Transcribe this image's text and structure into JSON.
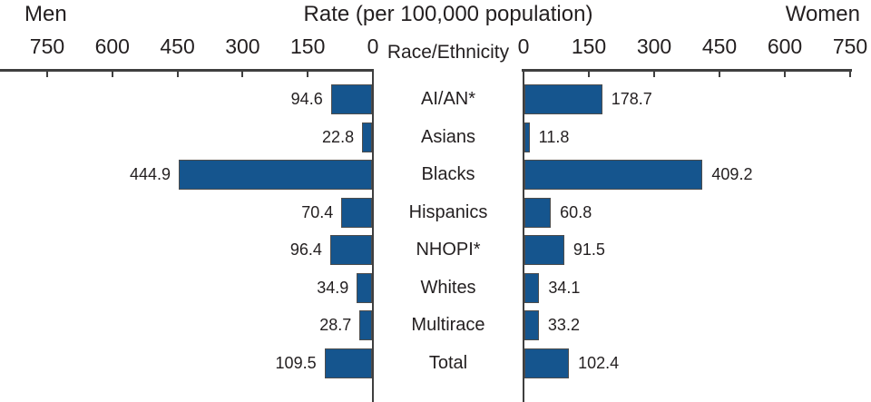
{
  "chart_data": {
    "type": "bar",
    "variant": "diverging-horizontal",
    "title": "Rate (per 100,000 population)",
    "left_series_label": "Men",
    "right_series_label": "Women",
    "category_axis_label": "Race/Ethnicity",
    "categories": [
      "AI/AN*",
      "Asians",
      "Blacks",
      "Hispanics",
      "NHOPI*",
      "Whites",
      "Multirace",
      "Total"
    ],
    "series": [
      {
        "name": "Men",
        "side": "left",
        "values": [
          94.6,
          22.8,
          444.9,
          70.4,
          96.4,
          34.9,
          28.7,
          109.5
        ]
      },
      {
        "name": "Women",
        "side": "right",
        "values": [
          178.7,
          11.8,
          409.2,
          60.8,
          91.5,
          34.1,
          33.2,
          102.4
        ]
      }
    ],
    "axis": {
      "min": 0,
      "max": 750,
      "tick_interval": 150,
      "ticks": [
        0,
        150,
        300,
        450,
        600,
        750
      ]
    },
    "value_labels_shown": true,
    "grid": false,
    "legend_position": "none",
    "colors": {
      "bar_fill": "#15558E",
      "bar_border": "#4D4D4D",
      "axis": "#3F3F3F",
      "text": "#231F20"
    }
  }
}
